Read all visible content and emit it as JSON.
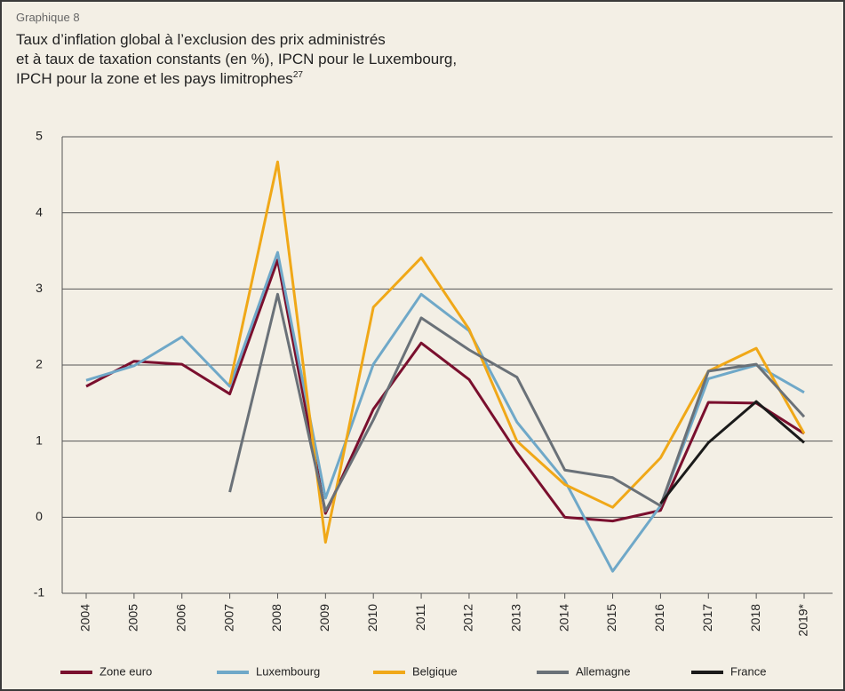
{
  "chart_data": {
    "type": "line",
    "label": "Graphique 8",
    "title_lines": [
      "Taux d’inflation global à l’exclusion des prix administrés",
      "et à taux de taxation constants (en %), IPCN pour le Luxembourg,",
      "IPCH pour la zone et les pays limitrophes"
    ],
    "footnote_mark": "27",
    "categories": [
      "2004",
      "2005",
      "2006",
      "2007",
      "2008",
      "2009",
      "2010",
      "2011",
      "2012",
      "2013",
      "2014",
      "2015",
      "2016",
      "2017",
      "2018",
      "2019*"
    ],
    "series": [
      {
        "name": "Zone euro",
        "color": "#7a0f2e",
        "values": [
          1.72,
          2.05,
          2.01,
          1.62,
          3.38,
          0.05,
          1.42,
          2.29,
          1.81,
          0.85,
          0.0,
          -0.05,
          0.09,
          1.51,
          1.5,
          1.1
        ]
      },
      {
        "name": "Luxembourg",
        "color": "#6fa8c8",
        "values": [
          1.8,
          1.99,
          2.37,
          1.72,
          3.48,
          0.25,
          2.01,
          2.93,
          2.45,
          1.25,
          0.48,
          -0.71,
          0.15,
          1.82,
          2.0,
          1.64
        ]
      },
      {
        "name": "Belgique",
        "color": "#f0a818",
        "values": [
          null,
          null,
          null,
          1.75,
          4.67,
          -0.33,
          2.76,
          3.41,
          2.47,
          1.0,
          0.43,
          0.13,
          0.78,
          1.92,
          2.22,
          1.1
        ]
      },
      {
        "name": "Allemagne",
        "color": "#6a7178",
        "values": [
          null,
          null,
          null,
          0.33,
          2.93,
          0.08,
          1.28,
          2.62,
          2.2,
          1.84,
          0.62,
          0.52,
          0.15,
          1.92,
          2.01,
          1.32
        ]
      },
      {
        "name": "France",
        "color": "#1a1a1a",
        "values": [
          null,
          null,
          null,
          null,
          null,
          null,
          null,
          null,
          null,
          null,
          null,
          null,
          0.18,
          0.98,
          1.52,
          0.98
        ]
      }
    ],
    "ylim": [
      -1,
      5
    ],
    "yticks": [
      -1,
      0,
      1,
      2,
      3,
      4,
      5
    ],
    "grid": true,
    "legend": "bottom"
  }
}
